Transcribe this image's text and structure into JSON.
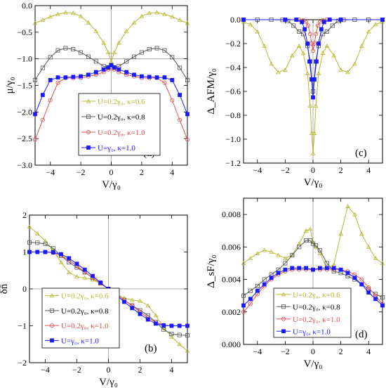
{
  "chart_data": [
    {
      "type": "line",
      "panel_tag": "(a)",
      "xlabel": "V/γ₀",
      "ylabel": "μ/γ₀",
      "xlim": [
        -5,
        5
      ],
      "ylim": [
        -3.0,
        0.0
      ],
      "xticks": [
        -4,
        -2,
        0,
        2,
        4
      ],
      "yticks": [
        0.0,
        -0.5,
        -1.0,
        -1.5,
        -2.0,
        -2.5,
        -3.0
      ],
      "xtick_labels": [
        "−4",
        "−2",
        "0",
        "2",
        "4"
      ],
      "ytick_labels": [
        "0.0",
        "−0.5",
        "−1.0",
        "−1.5",
        "−2.0",
        "−2.5",
        "−3.0"
      ],
      "legend_position": "center",
      "series": [
        {
          "name": "U=0.2γ₀, κ=0.6",
          "color": "#b8b830",
          "marker": "triangle",
          "x": [
            -5,
            -4.5,
            -4,
            -3.5,
            -3,
            -2.5,
            -2,
            -1.5,
            -1,
            -0.5,
            -0.2,
            0,
            0.2,
            0.5,
            1,
            1.5,
            2,
            2.5,
            3,
            3.5,
            4,
            4.5,
            5
          ],
          "y": [
            -0.33,
            -0.27,
            -0.21,
            -0.16,
            -0.13,
            -0.14,
            -0.2,
            -0.32,
            -0.48,
            -0.7,
            -0.88,
            -1.05,
            -0.88,
            -0.7,
            -0.48,
            -0.32,
            -0.2,
            -0.14,
            -0.13,
            -0.16,
            -0.21,
            -0.27,
            -0.33
          ]
        },
        {
          "name": "U=0.2γ₀, κ=0.8",
          "color": "#555555",
          "marker": "square-open",
          "x": [
            -5,
            -4.5,
            -4,
            -3.5,
            -3,
            -2.5,
            -2,
            -1.5,
            -1,
            -0.5,
            -0.2,
            0,
            0.2,
            0.5,
            1,
            1.5,
            2,
            2.5,
            3,
            3.5,
            4,
            4.5,
            5
          ],
          "y": [
            -1.4,
            -1.17,
            -0.97,
            -0.84,
            -0.8,
            -0.82,
            -0.88,
            -0.96,
            -1.05,
            -1.14,
            -1.17,
            -1.12,
            -1.17,
            -1.14,
            -1.05,
            -0.96,
            -0.88,
            -0.82,
            -0.8,
            -0.84,
            -0.97,
            -1.17,
            -1.4
          ]
        },
        {
          "name": "U=0.2γ₀, κ=1.0",
          "color": "#e05050",
          "marker": "circle-open",
          "x": [
            -5,
            -4.5,
            -4,
            -3.5,
            -3,
            -2.5,
            -2,
            -1.5,
            -1,
            -0.5,
            -0.2,
            0,
            0.2,
            0.5,
            1,
            1.5,
            2,
            2.5,
            3,
            3.5,
            4,
            4.5,
            5
          ],
          "y": [
            -2.52,
            -2.15,
            -1.78,
            -1.45,
            -1.36,
            -1.36,
            -1.36,
            -1.33,
            -1.3,
            -1.25,
            -1.2,
            -1.18,
            -1.2,
            -1.25,
            -1.3,
            -1.33,
            -1.36,
            -1.36,
            -1.36,
            -1.45,
            -1.78,
            -2.15,
            -2.52
          ]
        },
        {
          "name": "U=γ₀, κ=1.0",
          "color": "#1a1aff",
          "marker": "square-filled",
          "x": [
            -5,
            -4.5,
            -4,
            -3.5,
            -3,
            -2.5,
            -2,
            -1.5,
            -1,
            -0.5,
            -0.2,
            0,
            0.2,
            0.5,
            1,
            1.5,
            2,
            2.5,
            3,
            3.5,
            4,
            4.5,
            5
          ],
          "y": [
            -2.04,
            -1.68,
            -1.4,
            -1.35,
            -1.35,
            -1.34,
            -1.33,
            -1.3,
            -1.25,
            -1.2,
            -1.16,
            -1.12,
            -1.16,
            -1.2,
            -1.25,
            -1.3,
            -1.33,
            -1.34,
            -1.35,
            -1.35,
            -1.4,
            -1.68,
            -2.04
          ]
        }
      ]
    },
    {
      "type": "line",
      "panel_tag": "(c)",
      "xlabel": "V/γ₀",
      "ylabel": "Δ_AFM/γ₀",
      "xlim": [
        -5,
        5
      ],
      "ylim": [
        -1.2,
        0.0
      ],
      "xticks": [
        -4,
        -2,
        0,
        2,
        4
      ],
      "yticks": [
        0.0,
        -0.2,
        -0.4,
        -0.6,
        -0.8,
        -1.0,
        -1.2
      ],
      "xtick_labels": [
        "−4",
        "−2",
        "0",
        "2",
        "4"
      ],
      "ytick_labels": [
        "0.0",
        "−0.2",
        "−0.4",
        "−0.6",
        "−0.8",
        "−1.0",
        "−1.2"
      ],
      "series": [
        {
          "name": "U=0.2γ₀, κ=0.6",
          "color": "#b8b830",
          "marker": "triangle",
          "x": [
            -5,
            -4.5,
            -4,
            -3.5,
            -3,
            -2.5,
            -2,
            -1.5,
            -1,
            -0.7,
            -0.4,
            -0.2,
            -0.1,
            0,
            0.1,
            0.2,
            0.4,
            0.7,
            1,
            1.5,
            2,
            2.5,
            3,
            3.5,
            4,
            4.5,
            5
          ],
          "y": [
            -0.02,
            -0.04,
            -0.1,
            -0.22,
            -0.37,
            -0.44,
            -0.42,
            -0.3,
            -0.22,
            -0.28,
            -0.45,
            -0.72,
            -0.95,
            -1.12,
            -0.95,
            -0.72,
            -0.45,
            -0.28,
            -0.22,
            -0.3,
            -0.42,
            -0.44,
            -0.37,
            -0.22,
            -0.1,
            -0.04,
            -0.02
          ]
        },
        {
          "name": "U=0.2γ₀, κ=0.8",
          "color": "#555555",
          "marker": "square-open",
          "x": [
            -5,
            -4,
            -3,
            -2.2,
            -1.8,
            -1.4,
            -1,
            -0.7,
            -0.4,
            -0.2,
            0,
            0.2,
            0.4,
            0.7,
            1,
            1.4,
            1.8,
            2.2,
            3,
            4,
            5
          ],
          "y": [
            0,
            0,
            0,
            -0.002,
            -0.01,
            -0.05,
            -0.1,
            -0.12,
            -0.22,
            -0.35,
            -0.6,
            -0.35,
            -0.22,
            -0.12,
            -0.1,
            -0.05,
            -0.01,
            -0.002,
            0,
            0,
            0
          ]
        },
        {
          "name": "U=0.2γ₀, κ=1.0",
          "color": "#e05050",
          "marker": "circle-open",
          "x": [
            -5,
            -2,
            -1,
            -0.7,
            -0.5,
            -0.35,
            -0.2,
            -0.1,
            0,
            0.1,
            0.2,
            0.35,
            0.5,
            0.7,
            1,
            2,
            5
          ],
          "y": [
            0,
            0,
            0,
            -0.005,
            -0.02,
            -0.05,
            -0.12,
            -0.2,
            -0.26,
            -0.2,
            -0.12,
            -0.05,
            -0.02,
            -0.005,
            0,
            0,
            0
          ]
        },
        {
          "name": "U=γ₀, κ=1.0",
          "color": "#1a1aff",
          "marker": "square-filled",
          "x": [
            -5,
            -2,
            -1.2,
            -0.8,
            -0.6,
            -0.4,
            -0.25,
            -0.1,
            0,
            0.1,
            0.25,
            0.4,
            0.6,
            0.8,
            1.2,
            2,
            5
          ],
          "y": [
            0,
            0,
            0,
            -0.02,
            -0.08,
            -0.2,
            -0.35,
            -0.5,
            -0.65,
            -0.5,
            -0.35,
            -0.2,
            -0.08,
            -0.02,
            0,
            0,
            0
          ]
        }
      ]
    },
    {
      "type": "line",
      "panel_tag": "(b)",
      "xlabel": "V/γ₀",
      "ylabel": "δn̄",
      "xlim": [
        -5,
        5
      ],
      "ylim": [
        -2,
        2
      ],
      "xticks": [
        -4,
        -2,
        0,
        2,
        4
      ],
      "yticks": [
        2,
        1,
        0,
        -1,
        -2
      ],
      "xtick_labels": [
        "−4",
        "−2",
        "0",
        "2",
        "4"
      ],
      "ytick_labels": [
        "2",
        "1",
        "0",
        "−1",
        "−2"
      ],
      "legend_position": "lower-left",
      "series": [
        {
          "name": "U=0.2γ₀, κ=0.6",
          "color": "#b8b830",
          "marker": "triangle",
          "x": [
            -5,
            -4.5,
            -4,
            -3.5,
            -3,
            -2.5,
            -2,
            -1.5,
            -1,
            -0.5,
            0,
            0.5,
            1,
            1.5,
            2,
            2.5,
            3,
            3.5,
            4,
            4.5,
            5
          ],
          "y": [
            1.68,
            1.5,
            1.3,
            1.05,
            0.72,
            0.45,
            0.33,
            0.3,
            0.25,
            0.14,
            0,
            -0.14,
            -0.25,
            -0.3,
            -0.33,
            -0.45,
            -0.72,
            -1.05,
            -1.3,
            -1.5,
            -1.68
          ]
        },
        {
          "name": "U=0.2γ₀, κ=0.8",
          "color": "#555555",
          "marker": "square-open",
          "x": [
            -5,
            -4.5,
            -4,
            -3.5,
            -3,
            -2.5,
            -2,
            -1.5,
            -1,
            -0.5,
            0,
            0.5,
            1,
            1.5,
            2,
            2.5,
            3,
            3.5,
            4,
            4.5,
            5
          ],
          "y": [
            1.26,
            1.25,
            1.22,
            1.1,
            0.9,
            0.72,
            0.58,
            0.45,
            0.3,
            0.15,
            0,
            -0.15,
            -0.3,
            -0.45,
            -0.58,
            -0.72,
            -0.9,
            -1.1,
            -1.22,
            -1.25,
            -1.26
          ]
        },
        {
          "name": "U=0.2γ₀, κ=1.0",
          "color": "#e05050",
          "marker": "circle-open",
          "x": [
            -5,
            -4.5,
            -4,
            -3.5,
            -3,
            -2.5,
            -2,
            -1.5,
            -1,
            -0.5,
            0,
            0.5,
            1,
            1.5,
            2,
            2.5,
            3,
            3.5,
            4,
            4.5,
            5
          ],
          "y": [
            1.0,
            1.0,
            1.0,
            0.98,
            0.9,
            0.78,
            0.62,
            0.46,
            0.3,
            0.15,
            0,
            -0.15,
            -0.3,
            -0.46,
            -0.62,
            -0.78,
            -0.9,
            -0.98,
            -1.0,
            -1.0,
            -1.0
          ]
        },
        {
          "name": "U=γ₀, κ=1.0",
          "color": "#1a1aff",
          "marker": "square-filled",
          "x": [
            -5,
            -4.5,
            -4,
            -3.5,
            -3,
            -2.5,
            -2,
            -1.5,
            -1,
            -0.5,
            0,
            0.5,
            1,
            1.5,
            2,
            2.5,
            3,
            3.5,
            4,
            4.5,
            5
          ],
          "y": [
            1.0,
            1.0,
            1.0,
            0.99,
            0.94,
            0.83,
            0.68,
            0.52,
            0.35,
            0.17,
            0,
            -0.17,
            -0.35,
            -0.52,
            -0.68,
            -0.83,
            -0.94,
            -0.99,
            -1.0,
            -1.0,
            -1.0
          ]
        }
      ]
    },
    {
      "type": "line",
      "panel_tag": "(d)",
      "xlabel": "V/γ₀",
      "ylabel": "Δ_sF/γ₀",
      "xlim": [
        -5,
        5
      ],
      "ylim": [
        0.0,
        0.009
      ],
      "xticks": [
        -4,
        -2,
        0,
        2,
        4
      ],
      "yticks": [
        0.0,
        0.002,
        0.004,
        0.006,
        0.008
      ],
      "xtick_labels": [
        "−4",
        "−2",
        "0",
        "2",
        "4"
      ],
      "ytick_labels": [
        "0.000",
        "0.002",
        "0.004",
        "0.006",
        "0.008"
      ],
      "legend_position": "center-bottom",
      "series": [
        {
          "name": "U=0.2γ₀, κ=0.6",
          "color": "#b8b830",
          "marker": "triangle",
          "x": [
            -5,
            -4.5,
            -4,
            -3.5,
            -3,
            -2.5,
            -2,
            -1.5,
            -1,
            -0.5,
            -0.2,
            0,
            0.2,
            0.5,
            1,
            1.5,
            2,
            2.5,
            3,
            3.5,
            4,
            4.5,
            5
          ],
          "y": [
            0.005,
            0.0053,
            0.0056,
            0.0058,
            0.0057,
            0.0055,
            0.0053,
            0.0055,
            0.0062,
            0.007,
            0.0071,
            0.0063,
            0.006,
            0.0056,
            0.0047,
            0.0049,
            0.0068,
            0.0085,
            0.008,
            0.0068,
            0.006,
            0.0053,
            0.005
          ]
        },
        {
          "name": "U=0.2γ₀, κ=0.8",
          "color": "#555555",
          "marker": "square-open",
          "x": [
            -5,
            -4.5,
            -4,
            -3.5,
            -3,
            -2.5,
            -2,
            -1.5,
            -1,
            -0.5,
            -0.2,
            0,
            0.2,
            0.5,
            1,
            1.5,
            2,
            2.5,
            3,
            3.5,
            4,
            4.5,
            5
          ],
          "y": [
            0.003,
            0.0033,
            0.0036,
            0.004,
            0.0043,
            0.0046,
            0.005,
            0.0055,
            0.006,
            0.0064,
            0.0064,
            0.0062,
            0.0061,
            0.0058,
            0.005,
            0.0045,
            0.0044,
            0.0042,
            0.004,
            0.0037,
            0.0034,
            0.0031,
            0.0029
          ]
        },
        {
          "name": "U=0.2γ₀, κ=1.0",
          "color": "#e05050",
          "marker": "circle-open",
          "x": [
            -5,
            -4.5,
            -4,
            -3.5,
            -3,
            -2.5,
            -2,
            -1.5,
            -1,
            -0.5,
            0,
            0.5,
            1,
            1.5,
            2,
            2.5,
            3,
            3.5,
            4,
            4.5,
            5
          ],
          "y": [
            0.002,
            0.0025,
            0.0031,
            0.0036,
            0.004,
            0.0043,
            0.0045,
            0.0046,
            0.0046,
            0.0046,
            0.0046,
            0.0046,
            0.0046,
            0.0046,
            0.0046,
            0.0045,
            0.0043,
            0.004,
            0.0035,
            0.003,
            0.0025
          ]
        },
        {
          "name": "U=γ₀, κ=1.0",
          "color": "#1a1aff",
          "marker": "square-filled",
          "x": [
            -5,
            -4.5,
            -4,
            -3.5,
            -3,
            -2.5,
            -2,
            -1.5,
            -1,
            -0.5,
            0,
            0.5,
            1,
            1.5,
            2,
            2.5,
            3,
            3.5,
            4,
            4.5,
            5
          ],
          "y": [
            0.0024,
            0.0028,
            0.0033,
            0.0037,
            0.0041,
            0.0044,
            0.0046,
            0.0047,
            0.0047,
            0.0047,
            0.0046,
            0.0047,
            0.0047,
            0.0047,
            0.0046,
            0.0044,
            0.0041,
            0.0037,
            0.0032,
            0.0028,
            0.0024
          ]
        }
      ]
    }
  ]
}
